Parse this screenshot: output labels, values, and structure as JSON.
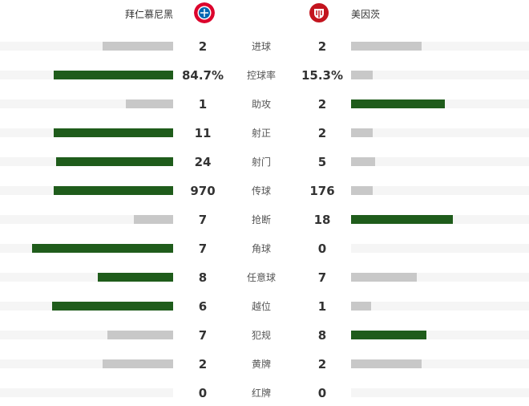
{
  "home": {
    "name": "拜仁慕尼黑",
    "logo": "bayern-crest-icon"
  },
  "away": {
    "name": "美因茨",
    "logo": "mainz-crest-icon"
  },
  "colors": {
    "leading": "#1f5c1b",
    "trailing": "#c8c8c8",
    "track": "#f5f5f5"
  },
  "stats": [
    {
      "label": "进球",
      "home": "2",
      "away": "2",
      "home_share": 50,
      "away_share": 50
    },
    {
      "label": "控球率",
      "home": "84.7%",
      "away": "15.3%",
      "home_share": 84.7,
      "away_share": 15.3
    },
    {
      "label": "助攻",
      "home": "1",
      "away": "2",
      "home_share": 33.3,
      "away_share": 66.7
    },
    {
      "label": "射正",
      "home": "11",
      "away": "2",
      "home_share": 84.6,
      "away_share": 15.4
    },
    {
      "label": "射门",
      "home": "24",
      "away": "5",
      "home_share": 82.8,
      "away_share": 17.2
    },
    {
      "label": "传球",
      "home": "970",
      "away": "176",
      "home_share": 84.6,
      "away_share": 15.4
    },
    {
      "label": "抢断",
      "home": "7",
      "away": "18",
      "home_share": 28,
      "away_share": 72
    },
    {
      "label": "角球",
      "home": "7",
      "away": "0",
      "home_share": 100,
      "away_share": 0
    },
    {
      "label": "任意球",
      "home": "8",
      "away": "7",
      "home_share": 53.3,
      "away_share": 46.7
    },
    {
      "label": "越位",
      "home": "6",
      "away": "1",
      "home_share": 85.7,
      "away_share": 14.3
    },
    {
      "label": "犯规",
      "home": "7",
      "away": "8",
      "home_share": 46.7,
      "away_share": 53.3
    },
    {
      "label": "黄牌",
      "home": "2",
      "away": "2",
      "home_share": 50,
      "away_share": 50
    },
    {
      "label": "红牌",
      "home": "0",
      "away": "0",
      "home_share": 0,
      "away_share": 0
    }
  ]
}
